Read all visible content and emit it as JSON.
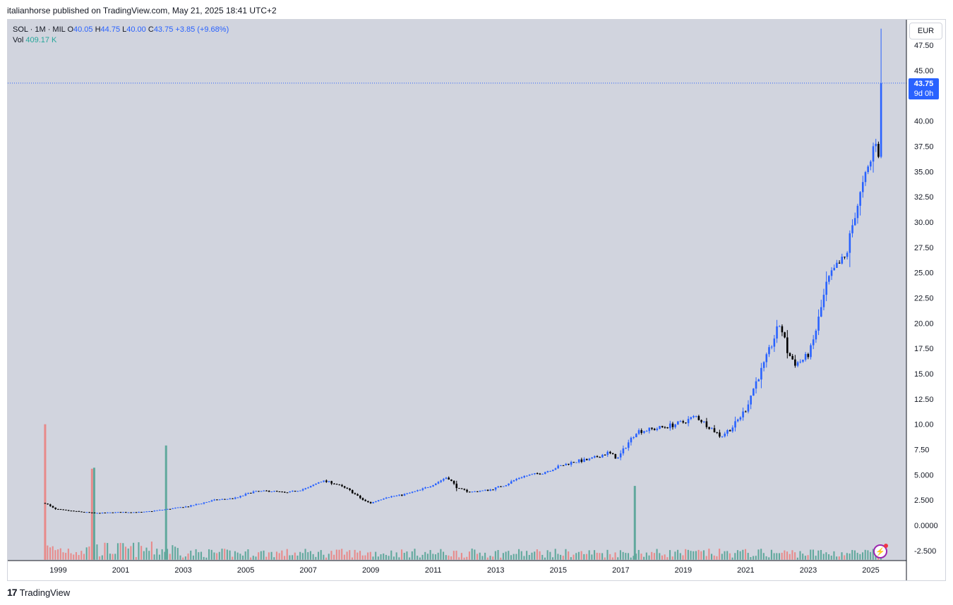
{
  "header": {
    "published": "italianhorse published on TradingView.com, May 21, 2025 18:41 UTC+2"
  },
  "legend": {
    "symbol": "SOL · 1M · MIL",
    "o_label": "O",
    "o_value": "40.05",
    "h_label": "H",
    "h_value": "44.75",
    "l_label": "L",
    "l_value": "40.00",
    "c_label": "C",
    "c_value": "43.75",
    "change": "+3.85 (+9.68%)",
    "vol_label": "Vol",
    "vol_value": "409.17 K"
  },
  "currency_button": "EUR",
  "price_tag": {
    "price": "43.75",
    "countdown": "9d 0h"
  },
  "footer": {
    "logo_text": "TradingView"
  },
  "colors": {
    "plot_bg": "#d1d4de",
    "up_candle": "#2962ff",
    "down_candle": "#000000",
    "vol_up": "#60a89c",
    "vol_down": "#e88a8a",
    "price_line": "#2962ff"
  },
  "chart_data": {
    "type": "candlestick",
    "title": "",
    "interval": "1M",
    "y_axis": {
      "ticks": [
        "47.50",
        "45.00",
        "40.00",
        "37.50",
        "35.00",
        "32.50",
        "30.00",
        "27.50",
        "25.00",
        "22.50",
        "20.00",
        "17.50",
        "15.00",
        "12.50",
        "10.00",
        "7.50",
        "5.000",
        "2.500",
        "0.0000",
        "-2.500"
      ],
      "range": [
        -3.5,
        49
      ]
    },
    "x_axis": {
      "ticks": [
        "1999",
        "2001",
        "2003",
        "2005",
        "2007",
        "2009",
        "2011",
        "2013",
        "2015",
        "2017",
        "2019",
        "2021",
        "2023",
        "2025"
      ],
      "range": [
        1998.0,
        2026.0
      ]
    },
    "last_price": 43.75,
    "approx_close_path": [
      [
        1998.58,
        2.2
      ],
      [
        1998.9,
        1.6
      ],
      [
        1999.5,
        1.4
      ],
      [
        2000.2,
        1.2
      ],
      [
        2001.0,
        1.3
      ],
      [
        2001.7,
        1.3
      ],
      [
        2002.5,
        1.6
      ],
      [
        2003.2,
        1.9
      ],
      [
        2004.0,
        2.5
      ],
      [
        2004.7,
        2.7
      ],
      [
        2005.2,
        3.3
      ],
      [
        2005.8,
        3.4
      ],
      [
        2006.3,
        3.2
      ],
      [
        2007.0,
        3.7
      ],
      [
        2007.4,
        4.4
      ],
      [
        2007.8,
        4.2
      ],
      [
        2008.3,
        3.5
      ],
      [
        2008.8,
        2.4
      ],
      [
        2009.0,
        2.2
      ],
      [
        2009.5,
        2.8
      ],
      [
        2010.0,
        3.0
      ],
      [
        2010.6,
        3.5
      ],
      [
        2011.1,
        4.2
      ],
      [
        2011.45,
        4.8
      ],
      [
        2011.8,
        3.6
      ],
      [
        2012.2,
        3.3
      ],
      [
        2012.8,
        3.5
      ],
      [
        2013.3,
        4.0
      ],
      [
        2013.8,
        4.8
      ],
      [
        2014.5,
        5.2
      ],
      [
        2015.0,
        5.8
      ],
      [
        2015.5,
        6.3
      ],
      [
        2016.0,
        6.5
      ],
      [
        2016.6,
        7.2
      ],
      [
        2016.9,
        6.6
      ],
      [
        2017.2,
        8.0
      ],
      [
        2017.5,
        9.3
      ],
      [
        2018.0,
        9.5
      ],
      [
        2018.5,
        9.8
      ],
      [
        2019.0,
        10.2
      ],
      [
        2019.4,
        10.8
      ],
      [
        2019.9,
        9.6
      ],
      [
        2020.2,
        8.8
      ],
      [
        2020.6,
        9.8
      ],
      [
        2021.0,
        11.5
      ],
      [
        2021.3,
        14.0
      ],
      [
        2021.6,
        16.0
      ],
      [
        2021.9,
        18.5
      ],
      [
        2022.1,
        20.0
      ],
      [
        2022.35,
        17.0
      ],
      [
        2022.6,
        16.0
      ],
      [
        2022.9,
        16.5
      ],
      [
        2023.1,
        17.5
      ],
      [
        2023.3,
        20.0
      ],
      [
        2023.6,
        24.0
      ],
      [
        2023.9,
        25.5
      ],
      [
        2024.2,
        26.5
      ],
      [
        2024.5,
        31.0
      ],
      [
        2024.8,
        34.0
      ],
      [
        2025.0,
        36.0
      ],
      [
        2025.15,
        38.5
      ],
      [
        2025.25,
        37.0
      ],
      [
        2025.33,
        43.75
      ]
    ],
    "volume_spikes": [
      {
        "x": 1998.58,
        "value": 10.0,
        "dir": "down"
      },
      {
        "x": 2000.08,
        "value": 5.6,
        "dir": "down"
      },
      {
        "x": 2000.15,
        "value": 5.7,
        "dir": "up"
      },
      {
        "x": 2002.45,
        "value": 7.9,
        "dir": "up"
      },
      {
        "x": 2017.45,
        "value": 3.9,
        "dir": "up"
      }
    ]
  }
}
